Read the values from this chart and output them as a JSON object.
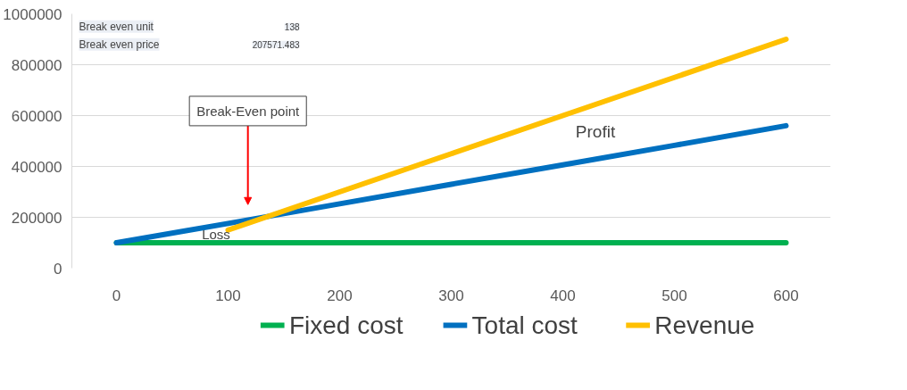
{
  "chart_data": {
    "type": "line",
    "x": [
      0,
      100,
      200,
      300,
      400,
      500,
      600
    ],
    "series": [
      {
        "name": "Fixed cost",
        "color": "#00b050",
        "values": [
          100000,
          100000,
          100000,
          100000,
          100000,
          100000,
          100000
        ]
      },
      {
        "name": "Total cost",
        "color": "#0070c0",
        "values": [
          100000,
          176000,
          253000,
          330000,
          406000,
          483000,
          560000
        ]
      },
      {
        "name": "Revenue",
        "color": "#ffc000",
        "x": [
          100,
          200,
          300,
          400,
          500,
          600
        ],
        "values": [
          150000,
          300000,
          450000,
          600000,
          750000,
          900000
        ]
      }
    ],
    "xlim": [
      -40,
      640
    ],
    "xticks": [
      0,
      100,
      200,
      300,
      400,
      500,
      600
    ],
    "ylim": [
      0,
      1000000
    ],
    "yticks": [
      0,
      200000,
      400000,
      600000,
      800000,
      1000000
    ],
    "grid": "y",
    "legend": "bottom",
    "marker": "none",
    "line_style": "solid",
    "annotations": [
      "Break even unit",
      "138",
      "Break even price",
      "207571.483",
      "Break-Even point",
      "Loss",
      "Profit"
    ]
  }
}
